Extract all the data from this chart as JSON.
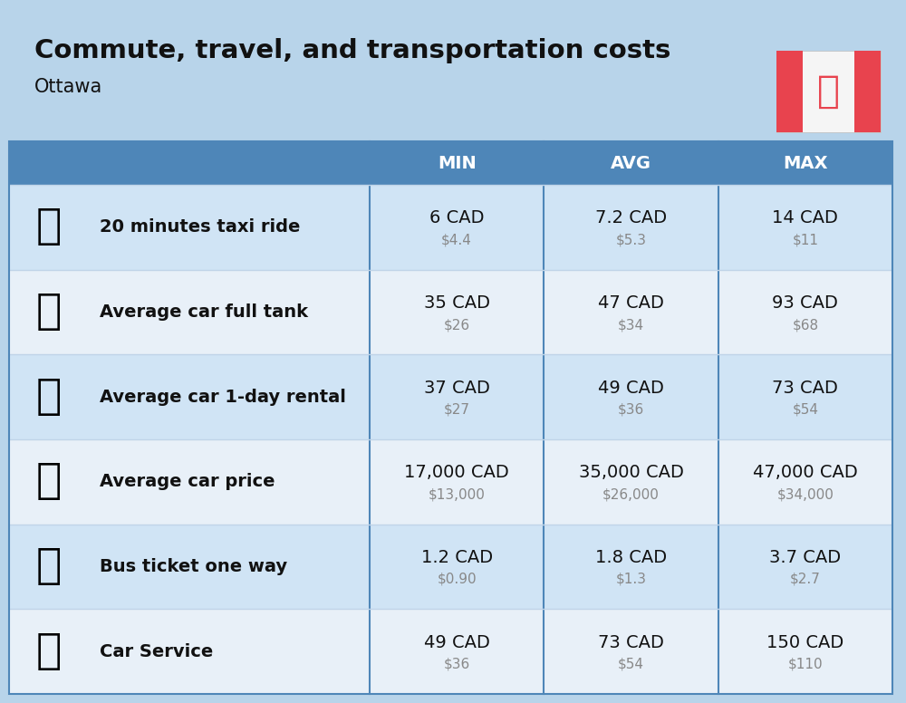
{
  "title": "Commute, travel, and transportation costs",
  "subtitle": "Ottawa",
  "background_color": "#b8d4ea",
  "header_bg_color": "#4e86b8",
  "header_text_color": "#ffffff",
  "row_bg_color_odd": "#d0e4f5",
  "row_bg_color_even": "#e8f0f8",
  "col_divider_color": "#4e86b8",
  "row_divider_color": "#c0d4e8",
  "columns": [
    "MIN",
    "AVG",
    "MAX"
  ],
  "rows": [
    {
      "label": "20 minutes taxi ride",
      "emoji": "🚕",
      "min_cad": "6 CAD",
      "min_usd": "$4.4",
      "avg_cad": "7.2 CAD",
      "avg_usd": "$5.3",
      "max_cad": "14 CAD",
      "max_usd": "$11"
    },
    {
      "label": "Average car full tank",
      "emoji": "⛽",
      "min_cad": "35 CAD",
      "min_usd": "$26",
      "avg_cad": "47 CAD",
      "avg_usd": "$34",
      "max_cad": "93 CAD",
      "max_usd": "$68"
    },
    {
      "label": "Average car 1-day rental",
      "emoji": "🚗",
      "min_cad": "37 CAD",
      "min_usd": "$27",
      "avg_cad": "49 CAD",
      "avg_usd": "$36",
      "max_cad": "73 CAD",
      "max_usd": "$54"
    },
    {
      "label": "Average car price",
      "emoji": "🚘",
      "min_cad": "17,000 CAD",
      "min_usd": "$13,000",
      "avg_cad": "35,000 CAD",
      "avg_usd": "$26,000",
      "max_cad": "47,000 CAD",
      "max_usd": "$34,000"
    },
    {
      "label": "Bus ticket one way",
      "emoji": "🚌",
      "min_cad": "1.2 CAD",
      "min_usd": "$0.90",
      "avg_cad": "1.8 CAD",
      "avg_usd": "$1.3",
      "max_cad": "3.7 CAD",
      "max_usd": "$2.7"
    },
    {
      "label": "Car Service",
      "emoji": "🚙",
      "min_cad": "49 CAD",
      "min_usd": "$36",
      "avg_cad": "73 CAD",
      "avg_usd": "$54",
      "max_cad": "150 CAD",
      "max_usd": "$110"
    }
  ],
  "flag_red": "#e8434e",
  "flag_white": "#f5f5f5",
  "title_fontsize": 21,
  "subtitle_fontsize": 15,
  "header_fontsize": 14,
  "label_fontsize": 14,
  "value_fontsize": 14,
  "usd_fontsize": 11
}
